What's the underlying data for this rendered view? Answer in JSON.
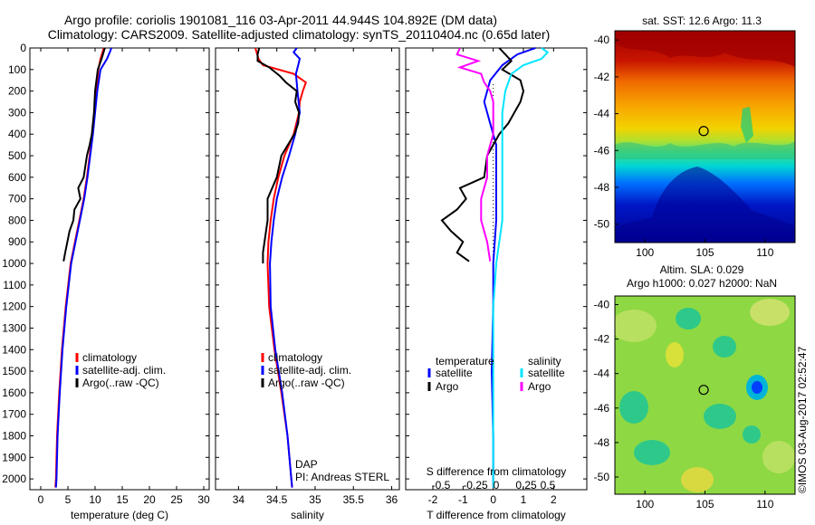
{
  "header": {
    "line1": "Argo profile: coriolis 1901081_116 03-Apr-2011 44.944S 104.892E (DM data)",
    "line2": "Climatology: CARS2009. Satellite-adjusted climatology: synTS_20110404.nc (0.65d later)"
  },
  "colors": {
    "climatology": "#ff0000",
    "satellite": "#0000ff",
    "argo": "#000000",
    "sal_satellite": "#00e5ff",
    "sal_argo": "#ff00ff"
  },
  "depth_axis": {
    "range": [
      0,
      2050
    ],
    "ticks": [
      "0",
      "100",
      "200",
      "300",
      "400",
      "500",
      "600",
      "700",
      "800",
      "900",
      "1000",
      "1100",
      "1200",
      "1300",
      "1400",
      "1500",
      "1600",
      "1700",
      "1800",
      "1900",
      "2000"
    ]
  },
  "chart_data": [
    {
      "id": "temperature",
      "type": "line",
      "xlabel": "temperature (deg C)",
      "xlim": [
        -2,
        31
      ],
      "ylim": [
        0,
        2050
      ],
      "xticks": [
        "0",
        "5",
        "10",
        "15",
        "20",
        "25",
        "30"
      ],
      "legend": {
        "placement": "lower-middle",
        "entries": [
          "climatology",
          "satellite-adj. clim.",
          "Argo(..raw -QC)"
        ]
      },
      "series": [
        {
          "name": "climatology",
          "depth": [
            0,
            50,
            100,
            200,
            300,
            400,
            500,
            600,
            700,
            800,
            900,
            1000,
            1200,
            1400,
            1600,
            1800,
            2000,
            2040
          ],
          "values": [
            11.6,
            11.0,
            10.6,
            10.2,
            9.9,
            9.5,
            9.0,
            8.5,
            7.9,
            7.1,
            6.3,
            5.5,
            4.6,
            3.9,
            3.4,
            3.0,
            2.8,
            2.7
          ]
        },
        {
          "name": "satellite-adj. clim.",
          "depth": [
            0,
            20,
            50,
            100,
            200,
            300,
            400,
            500,
            600,
            700,
            800,
            900,
            1000,
            1200,
            1400,
            1600,
            1800,
            2000,
            2040
          ],
          "values": [
            13.0,
            12.7,
            12.2,
            11.0,
            10.4,
            10.0,
            9.6,
            9.1,
            8.6,
            8.0,
            7.2,
            6.4,
            5.6,
            4.7,
            4.0,
            3.5,
            3.1,
            2.9,
            2.8
          ]
        },
        {
          "name": "Argo(..raw -QC)",
          "depth": [
            0,
            50,
            100,
            200,
            300,
            400,
            450,
            500,
            550,
            600,
            650,
            700,
            750,
            800,
            850,
            900,
            950,
            990
          ],
          "values": [
            11.8,
            11.2,
            10.5,
            10.0,
            9.8,
            9.4,
            9.0,
            8.5,
            8.2,
            7.9,
            6.9,
            7.3,
            6.2,
            6.0,
            5.3,
            4.9,
            4.5,
            4.2
          ]
        }
      ]
    },
    {
      "id": "salinity",
      "type": "line",
      "xlabel": "salinity",
      "xlim": [
        33.7,
        36.1
      ],
      "ylim": [
        0,
        2050
      ],
      "xticks": [
        "34",
        "34.5",
        "35",
        "35.5",
        "36"
      ],
      "legend": {
        "placement": "lower-middle",
        "entries": [
          "climatology",
          "satellite-adj. clim.",
          "Argo(..raw -QC)"
        ]
      },
      "annotations": [
        "DAP",
        "PI: Andreas STERL"
      ],
      "series": [
        {
          "name": "climatology",
          "depth": [
            0,
            50,
            80,
            120,
            160,
            200,
            250,
            300,
            400,
            500,
            600,
            700,
            800,
            900,
            1000,
            1200,
            1400,
            1600,
            1800,
            2000,
            2040
          ],
          "values": [
            34.22,
            34.26,
            34.32,
            34.72,
            34.88,
            34.84,
            34.8,
            34.79,
            34.72,
            34.6,
            34.52,
            34.46,
            34.42,
            34.39,
            34.38,
            34.4,
            34.47,
            34.56,
            34.64,
            34.69,
            34.7
          ]
        },
        {
          "name": "satellite-adj. clim.",
          "depth": [
            0,
            20,
            50,
            80,
            120,
            200,
            300,
            400,
            500,
            600,
            700,
            800,
            900,
            1000,
            1200,
            1400,
            1600,
            1800,
            2000,
            2040
          ],
          "values": [
            34.76,
            34.72,
            34.8,
            34.78,
            34.75,
            34.77,
            34.8,
            34.74,
            34.66,
            34.57,
            34.5,
            34.46,
            34.43,
            34.41,
            34.42,
            34.48,
            34.57,
            34.64,
            34.69,
            34.7
          ]
        },
        {
          "name": "Argo(..raw -QC)",
          "depth": [
            0,
            30,
            60,
            90,
            130,
            160,
            200,
            250,
            300,
            350,
            400,
            500,
            600,
            700,
            800,
            900,
            950,
            1000
          ],
          "values": [
            34.27,
            34.25,
            34.25,
            34.4,
            34.54,
            34.62,
            34.76,
            34.74,
            34.79,
            34.78,
            34.73,
            34.56,
            34.5,
            34.38,
            34.38,
            34.34,
            34.32,
            34.32
          ]
        }
      ]
    },
    {
      "id": "differences",
      "type": "line",
      "xlabel": "T difference from climatology",
      "secondary_xlabel": "S difference from climatology",
      "xlim": [
        -2.9,
        3.1
      ],
      "ylim": [
        0,
        2050
      ],
      "xticks": [
        "-2",
        "-1",
        "0",
        "1",
        "2"
      ],
      "secondary_xticks": [
        "-0.5",
        "-0.25",
        "0",
        "0.25",
        "0.5"
      ],
      "legend": {
        "placement": "lower-middle",
        "temperature_header": "temperature",
        "salinity_header": "salinity",
        "entries": [
          "satellite",
          "Argo",
          "satellite",
          "Argo"
        ]
      },
      "series": [
        {
          "name": "temperature satellite",
          "depth": [
            0,
            30,
            80,
            150,
            250,
            350,
            450,
            600,
            800,
            1000,
            1200,
            1500,
            1800,
            2000,
            2040
          ],
          "values": [
            1.4,
            0.8,
            0.3,
            -0.1,
            -0.3,
            -0.1,
            0.1,
            0.1,
            0.1,
            0.0,
            0.0,
            -0.05,
            0.0,
            0.0,
            0.0
          ]
        },
        {
          "name": "temperature Argo",
          "depth": [
            0,
            30,
            60,
            100,
            150,
            200,
            250,
            300,
            350,
            400,
            500,
            600,
            650,
            700,
            750,
            800,
            850,
            900,
            950,
            990
          ],
          "values": [
            0.2,
            0.4,
            0.6,
            0.3,
            0.9,
            1.0,
            0.9,
            0.7,
            0.5,
            0.2,
            -0.2,
            -0.3,
            -1.1,
            -0.9,
            -1.2,
            -1.7,
            -1.4,
            -1.0,
            -1.2,
            -0.8
          ]
        },
        {
          "name": "salinity satellite",
          "depth": [
            0,
            20,
            50,
            80,
            120,
            200,
            300,
            400,
            500,
            600,
            800,
            1000,
            1200,
            1500,
            1800,
            2000,
            2040
          ],
          "values": [
            1.6,
            1.8,
            1.6,
            1.0,
            0.6,
            0.4,
            0.3,
            0.3,
            0.3,
            0.3,
            0.3,
            0.1,
            0.0,
            0.0,
            0.0,
            0.0,
            0.0
          ]
        },
        {
          "name": "salinity Argo",
          "depth": [
            0,
            30,
            60,
            90,
            120,
            160,
            200,
            250,
            300,
            400,
            500,
            600,
            700,
            800,
            900,
            990
          ],
          "values": [
            -1.1,
            -1.2,
            -0.5,
            -1.1,
            -0.4,
            -0.3,
            -0.1,
            0.0,
            0.0,
            0.0,
            -0.2,
            -0.2,
            -0.4,
            -0.4,
            -0.2,
            -0.1
          ]
        }
      ]
    },
    {
      "id": "sst-map",
      "type": "heatmap",
      "title": "sat. SST: 12.6  Argo: 11.3",
      "xticks": [
        "100",
        "105",
        "110"
      ],
      "yticks": [
        "-40",
        "-42",
        "-44",
        "-46",
        "-48",
        "-50"
      ],
      "xlim": [
        97.5,
        112.5
      ],
      "ylim": [
        -51,
        -39.5
      ],
      "marker": {
        "lon": 104.892,
        "lat": -44.944
      }
    },
    {
      "id": "sla-map",
      "type": "heatmap",
      "title": "Altim. SLA: 0.029",
      "subtitle": "Argo h1000: 0.027  h2000: NaN",
      "xticks": [
        "100",
        "105",
        "110"
      ],
      "yticks": [
        "-40",
        "-42",
        "-44",
        "-46",
        "-48",
        "-50"
      ],
      "xlim": [
        97.5,
        112.5
      ],
      "ylim": [
        -51,
        -39.5
      ],
      "marker": {
        "lon": 104.892,
        "lat": -44.944
      }
    }
  ],
  "footer": {
    "credit": "©IMOS 03-Aug-2017 02:52:47"
  }
}
